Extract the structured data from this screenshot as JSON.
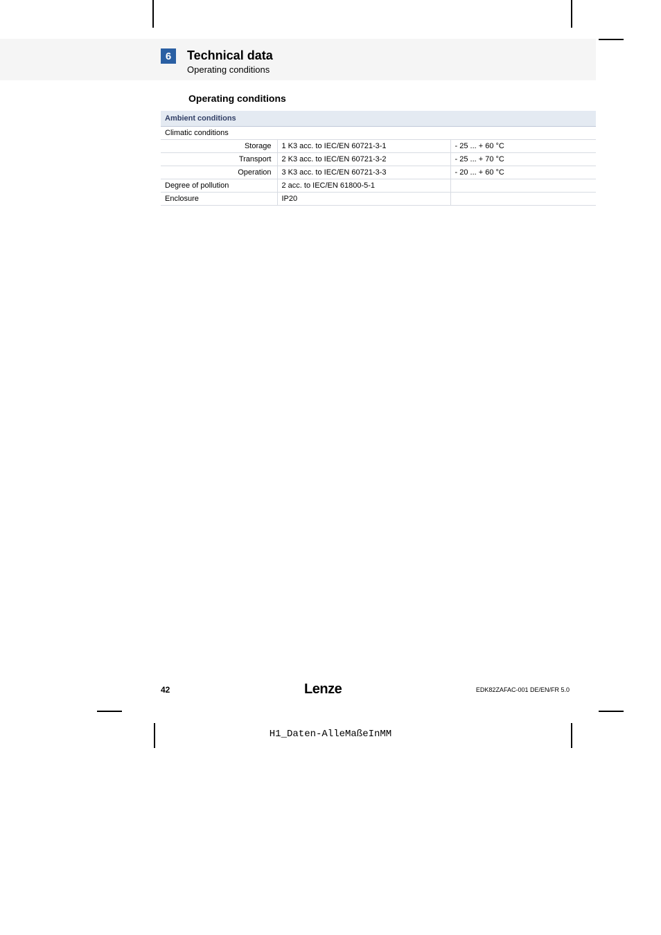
{
  "section": {
    "number": "6",
    "title": "Technical data",
    "subtitle": "Operating conditions"
  },
  "sub_heading": "Operating conditions",
  "table": {
    "header": "Ambient conditions",
    "group_label": "Climatic conditions",
    "rows": [
      {
        "label": "Storage",
        "spec": "1 K3 acc. to IEC/EN 60721-3-1",
        "range": "- 25 ... + 60 °C"
      },
      {
        "label": "Transport",
        "spec": "2 K3 acc. to IEC/EN 60721-3-2",
        "range": "- 25 ... + 70 °C"
      },
      {
        "label": "Operation",
        "spec": "3 K3 acc. to IEC/EN 60721-3-3",
        "range": "- 20 ... + 60 °C"
      }
    ],
    "plain_rows": [
      {
        "label": "Degree of pollution",
        "spec": "2 acc. to IEC/EN 61800-5-1",
        "range": ""
      },
      {
        "label": "Enclosure",
        "spec": "IP20",
        "range": ""
      }
    ]
  },
  "footer": {
    "page": "42",
    "brand": "Lenze",
    "doc_id": "EDK82ZAFAC-001  DE/EN/FR  5.0"
  },
  "bottom_note": "H1_Daten-AlleMaßeInMM",
  "colors": {
    "band_bg": "#f5f5f5",
    "num_box_bg": "#2a5fa3",
    "table_hdr_bg": "#e4eaf2",
    "table_hdr_text": "#313f66",
    "row_border": "#d7dbe2"
  }
}
